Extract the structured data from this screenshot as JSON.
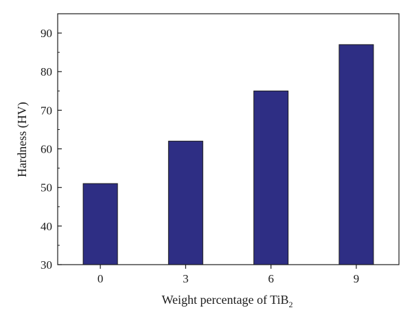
{
  "chart_data": {
    "type": "bar",
    "title": "",
    "xlabel_main": "Weight percentage of TiB",
    "xlabel_sub": "2",
    "ylabel": "Hardness (HV)",
    "categories": [
      "0",
      "3",
      "6",
      "9"
    ],
    "values": [
      51,
      62,
      75,
      87
    ],
    "ylim": [
      30,
      95
    ],
    "yticks": [
      30,
      40,
      50,
      60,
      70,
      80,
      90
    ],
    "bar_color": "#2e2e84",
    "grid": false,
    "legend": false
  }
}
